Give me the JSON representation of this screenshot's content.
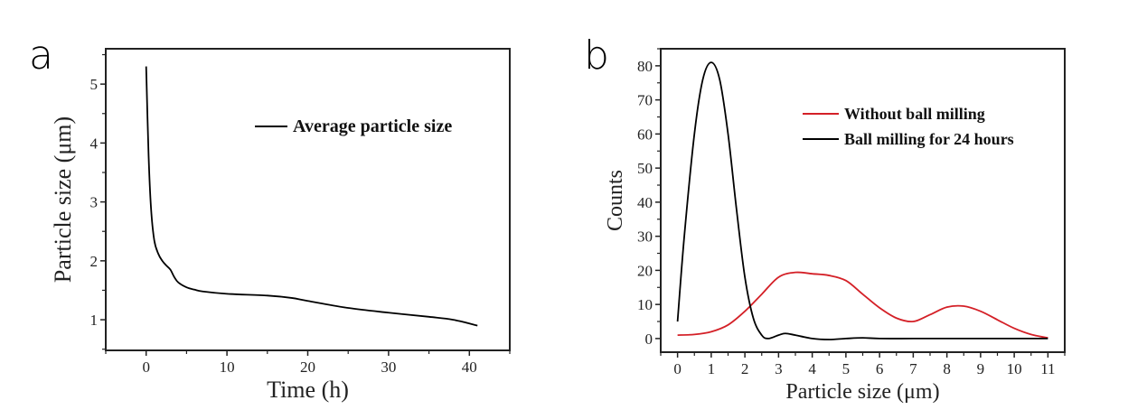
{
  "chart_data": [
    {
      "panel": "a",
      "type": "line",
      "title": "",
      "xlabel": "Time (h)",
      "ylabel": "Particle size (μm)",
      "xlim": [
        -5,
        45
      ],
      "ylim": [
        0.48,
        5.6
      ],
      "xticks": [
        0,
        10,
        20,
        30,
        40
      ],
      "xtick_labels": [
        "0",
        "10",
        "20",
        "30",
        "40"
      ],
      "yticks": [
        1,
        2,
        3,
        4,
        5
      ],
      "ytick_labels": [
        "1",
        "2",
        "3",
        "4",
        "5"
      ],
      "grid": false,
      "legend_position": "top-right",
      "series": [
        {
          "name": "Average particle size",
          "color": "#000000",
          "x": [
            0,
            0.3,
            0.6,
            1,
            1.5,
            2,
            2.5,
            3,
            3.5,
            4,
            5,
            6,
            7,
            10,
            15,
            18,
            20,
            25,
            30,
            35,
            38,
            41
          ],
          "y": [
            5.3,
            3.8,
            2.9,
            2.35,
            2.12,
            2.0,
            1.92,
            1.85,
            1.72,
            1.63,
            1.55,
            1.51,
            1.48,
            1.44,
            1.41,
            1.37,
            1.32,
            1.2,
            1.12,
            1.05,
            1.0,
            0.9
          ]
        }
      ]
    },
    {
      "panel": "b",
      "type": "line",
      "title": "",
      "xlabel": "Particle size (μm)",
      "ylabel": "Counts",
      "xlim": [
        -0.5,
        11.5
      ],
      "ylim": [
        -4,
        85
      ],
      "xticks": [
        0,
        1,
        2,
        3,
        4,
        5,
        6,
        7,
        8,
        9,
        10,
        11
      ],
      "xtick_labels": [
        "0",
        "1",
        "2",
        "3",
        "4",
        "5",
        "6",
        "7",
        "8",
        "9",
        "10",
        "11"
      ],
      "yticks": [
        0,
        10,
        20,
        30,
        40,
        50,
        60,
        70,
        80
      ],
      "ytick_labels": [
        "0",
        "10",
        "20",
        "30",
        "40",
        "50",
        "60",
        "70",
        "80"
      ],
      "grid": false,
      "legend_position": "top-right",
      "series": [
        {
          "name": "Without ball milling",
          "color": "#d42027",
          "x": [
            0,
            0.5,
            1,
            1.5,
            2,
            2.5,
            3,
            3.5,
            4,
            4.5,
            5,
            5.5,
            6,
            6.5,
            7,
            7.5,
            8,
            8.5,
            9,
            9.5,
            10,
            10.5,
            11
          ],
          "y": [
            1,
            1.2,
            2,
            4,
            8,
            13,
            18,
            19.4,
            19,
            18.5,
            17,
            13,
            9,
            6,
            5,
            7,
            9.2,
            9.5,
            8,
            5.5,
            3,
            1.2,
            0.2
          ]
        },
        {
          "name": "Ball milling for 24 hours",
          "color": "#000000",
          "x": [
            0,
            0.2,
            0.5,
            0.75,
            1,
            1.25,
            1.5,
            1.75,
            2,
            2.25,
            2.5,
            2.7,
            3,
            3.2,
            3.5,
            4,
            4.5,
            5,
            5.5,
            6,
            7,
            8,
            9,
            10,
            11
          ],
          "y": [
            5,
            30,
            60,
            76,
            81,
            76,
            60,
            38,
            18,
            6,
            1,
            0,
            1,
            1.5,
            1,
            0,
            -0.3,
            0,
            0.2,
            0,
            0,
            0,
            0,
            0,
            0
          ]
        }
      ]
    }
  ]
}
